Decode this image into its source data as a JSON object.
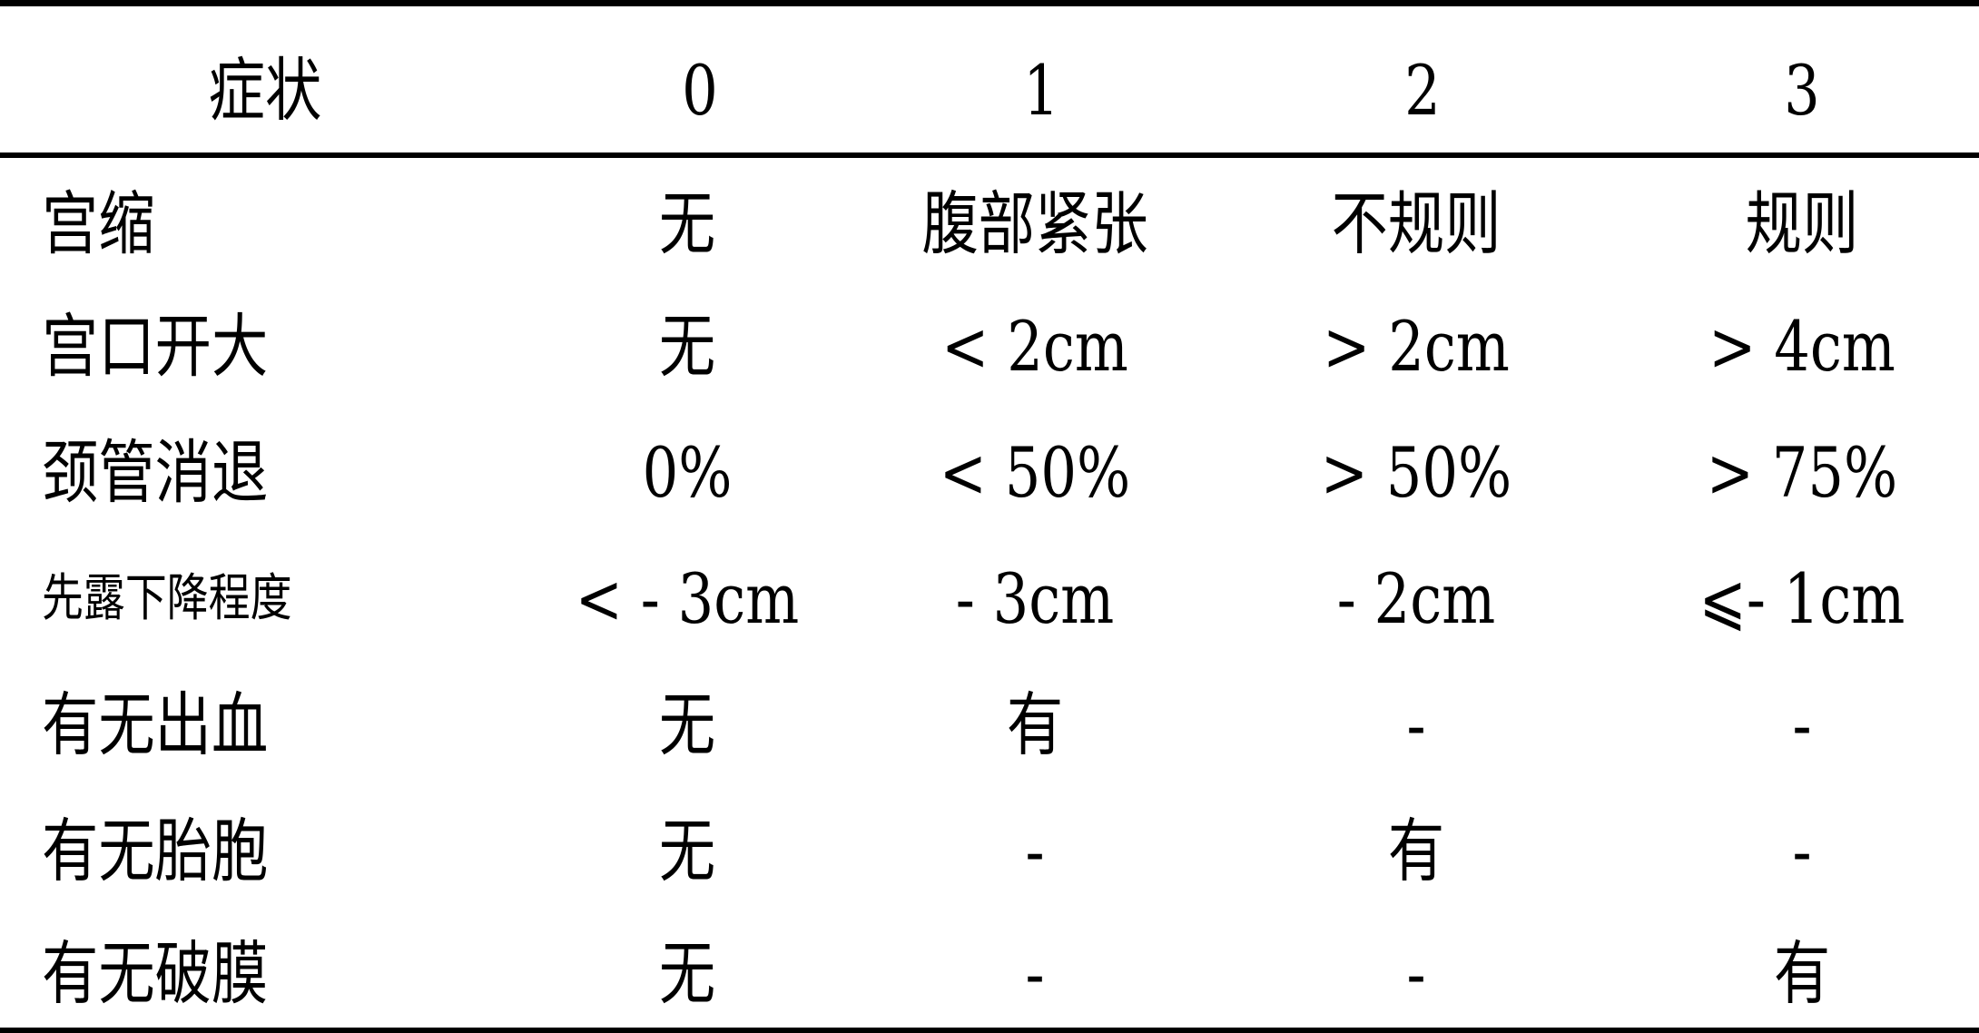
{
  "header": {
    "label": "症状",
    "levels": [
      "0",
      "1",
      "2",
      "3"
    ]
  },
  "rows": [
    {
      "label": "宫缩",
      "values": [
        "无",
        "腹部紧张",
        "不规则",
        "规则"
      ]
    },
    {
      "label": "宫口开大",
      "values": [
        "无",
        "< 2cm",
        "> 2cm",
        "> 4cm"
      ]
    },
    {
      "label": "颈管消退",
      "values": [
        "0%",
        "< 50%",
        "> 50%",
        "> 75%"
      ]
    },
    {
      "label": "先露下降程度",
      "values": [
        "< - 3cm",
        "- 3cm",
        "- 2cm",
        "⩽- 1cm"
      ]
    },
    {
      "label": "有无出血",
      "values": [
        "无",
        "有",
        "-",
        "-"
      ]
    },
    {
      "label": "有无胎胞",
      "values": [
        "无",
        "-",
        "有",
        "-"
      ]
    },
    {
      "label": "有无破膜",
      "values": [
        "无",
        "-",
        "-",
        "有"
      ]
    }
  ]
}
